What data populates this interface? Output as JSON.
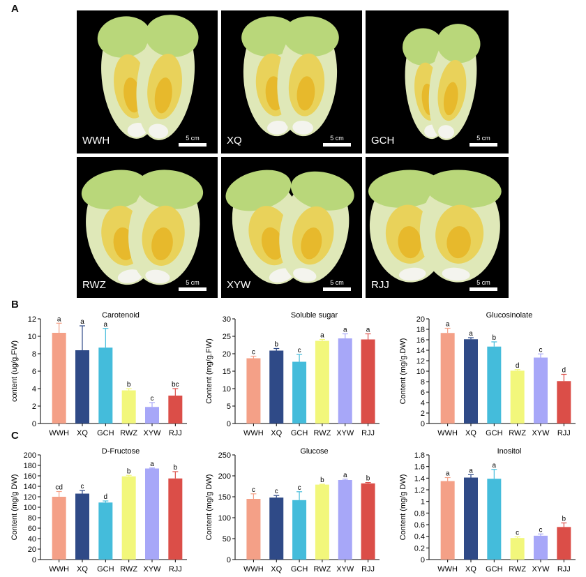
{
  "panels": {
    "a": "A",
    "b": "B",
    "c": "C"
  },
  "photos": [
    {
      "name": "WWH",
      "scale": "5 cm",
      "bodies": [
        [
          [
            0.38,
            0.49,
            0.2,
            0.41,
            -8
          ],
          [
            0.63,
            0.49,
            0.2,
            0.42,
            8
          ]
        ]
      ]
    },
    {
      "name": "XQ",
      "scale": "5 cm",
      "bodies": [
        [
          [
            0.37,
            0.48,
            0.21,
            0.4,
            -5
          ],
          [
            0.61,
            0.48,
            0.21,
            0.4,
            5
          ]
        ]
      ]
    },
    {
      "name": "GCH",
      "scale": "5 cm",
      "bodies": [
        [
          [
            0.43,
            0.53,
            0.15,
            0.37,
            -6
          ],
          [
            0.61,
            0.52,
            0.16,
            0.39,
            8
          ]
        ]
      ]
    },
    {
      "name": "RWZ",
      "scale": "5 cm",
      "bodies": [
        [
          [
            0.32,
            0.52,
            0.25,
            0.39,
            -10
          ],
          [
            0.62,
            0.52,
            0.25,
            0.39,
            8
          ]
        ]
      ]
    },
    {
      "name": "XYW",
      "scale": "5 cm",
      "bodies": [
        [
          [
            0.34,
            0.52,
            0.25,
            0.39,
            -15
          ],
          [
            0.66,
            0.52,
            0.24,
            0.38,
            12
          ]
        ]
      ]
    },
    {
      "name": "RJJ",
      "scale": "5 cm",
      "bodies": [
        [
          [
            0.3,
            0.51,
            0.27,
            0.38,
            -5
          ],
          [
            0.66,
            0.51,
            0.28,
            0.38,
            5
          ]
        ]
      ]
    }
  ],
  "colors": [
    "#f4a087",
    "#2f4a87",
    "#44bcdb",
    "#f2f77b",
    "#a7a7f8",
    "#db4e48"
  ],
  "chart_data": [
    {
      "type": "bar",
      "title": "Carotenoid",
      "ylabel": "content (ug/g.FW)",
      "ylim": [
        0,
        12
      ],
      "ystep": 2,
      "categories": [
        "WWH",
        "XQ",
        "GCH",
        "RWZ",
        "XYW",
        "RJJ"
      ],
      "values": [
        10.4,
        8.4,
        8.7,
        3.8,
        1.9,
        3.2
      ],
      "errors": [
        1.1,
        2.8,
        2.2,
        0.2,
        0.5,
        0.8
      ],
      "letters": [
        "a",
        "a",
        "a",
        "b",
        "c",
        "bc"
      ]
    },
    {
      "type": "bar",
      "title": "Soluble sugar",
      "ylabel": "Content (mg/g.FW)",
      "ylim": [
        0,
        30
      ],
      "ystep": 5,
      "categories": [
        "WWH",
        "XQ",
        "GCH",
        "RWZ",
        "XYW",
        "RJJ"
      ],
      "values": [
        18.7,
        20.9,
        17.7,
        23.7,
        24.4,
        24.1
      ],
      "errors": [
        0.6,
        0.6,
        2.1,
        0.4,
        1.3,
        1.6
      ],
      "letters": [
        "c",
        "b",
        "c",
        "a",
        "a",
        "a"
      ]
    },
    {
      "type": "bar",
      "title": "Glucosinolate",
      "ylabel": "Content (mg/g.DW)",
      "ylim": [
        0,
        20
      ],
      "ystep": 2,
      "categories": [
        "WWH",
        "XQ",
        "GCH",
        "RWZ",
        "XYW",
        "RJJ"
      ],
      "values": [
        17.3,
        16.1,
        14.7,
        10.1,
        12.6,
        8.1
      ],
      "errors": [
        0.9,
        0.3,
        0.9,
        0.2,
        0.7,
        1.3
      ],
      "letters": [
        "a",
        "a",
        "b",
        "d",
        "c",
        "d"
      ]
    },
    {
      "type": "bar",
      "title": "D-Fructose",
      "ylabel": "Content (mg/g DW)",
      "ylim": [
        0,
        200
      ],
      "ystep": 20,
      "categories": [
        "WWH",
        "XQ",
        "GCH",
        "RWZ",
        "XYW",
        "RJJ"
      ],
      "values": [
        120,
        126,
        109,
        159,
        174,
        155
      ],
      "errors": [
        10,
        6,
        3,
        2,
        1,
        13
      ],
      "letters": [
        "cd",
        "c",
        "d",
        "b",
        "a",
        "b"
      ]
    },
    {
      "type": "bar",
      "title": "Glucose",
      "ylabel": "Content (mg/g DW)",
      "ylim": [
        0,
        250
      ],
      "ystep": 50,
      "categories": [
        "WWH",
        "XQ",
        "GCH",
        "RWZ",
        "XYW",
        "RJJ"
      ],
      "values": [
        145,
        148,
        142,
        179,
        190,
        182
      ],
      "errors": [
        12,
        5,
        20,
        1,
        2,
        2
      ],
      "letters": [
        "c",
        "c",
        "c",
        "b",
        "a",
        "b"
      ]
    },
    {
      "type": "bar",
      "title": "Inositol",
      "ylabel": "Content (mg/g DW)",
      "ylim": [
        0,
        1.8
      ],
      "ystep": 0.2,
      "categories": [
        "WWH",
        "XQ",
        "GCH",
        "RWZ",
        "XYW",
        "RJJ"
      ],
      "values": [
        1.35,
        1.41,
        1.39,
        0.37,
        0.41,
        0.56
      ],
      "errors": [
        0.06,
        0.05,
        0.16,
        0.02,
        0.03,
        0.07
      ],
      "letters": [
        "a",
        "a",
        "a",
        "c",
        "c",
        "b"
      ]
    }
  ]
}
